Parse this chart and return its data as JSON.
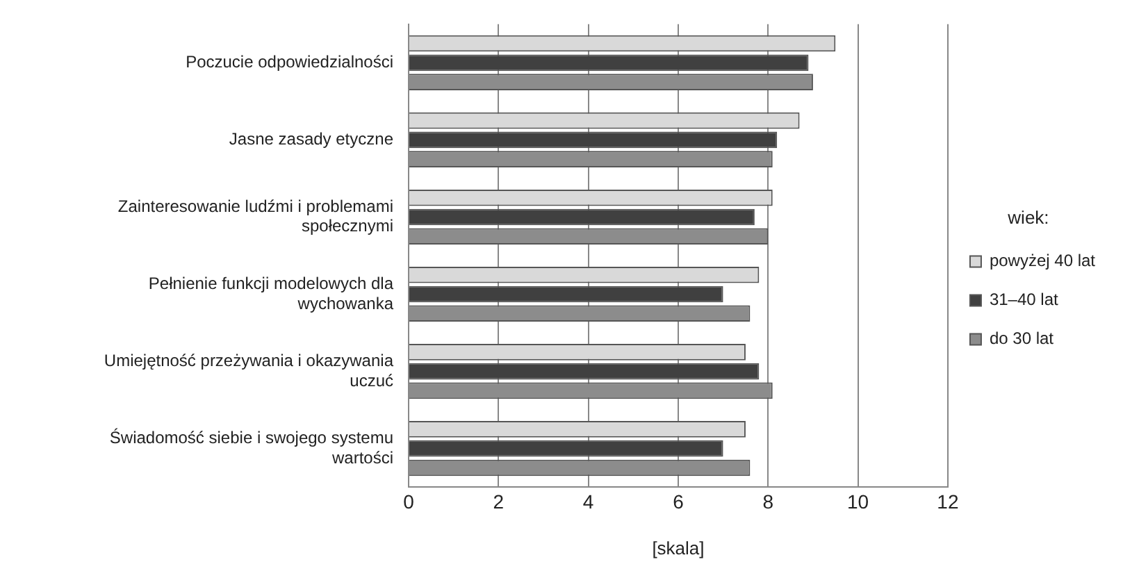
{
  "chart_data": {
    "type": "bar",
    "orientation": "horizontal",
    "xlabel": "[skala]",
    "legend_title": "wiek:",
    "legend": "right",
    "grid": "x",
    "categories": [
      "Poczucie odpowiedzialności",
      "Jasne zasady etyczne",
      "Zainteresowanie ludźmi i problemami społecznymi",
      "Pełnienie funkcji modelowych dla wychowanka",
      "Umiejętność przeżywania i okazywania uczuć",
      "Świadomość siebie i swojego systemu wartości"
    ],
    "xlim": [
      0,
      12
    ],
    "xticks": [
      0,
      2,
      4,
      6,
      8,
      10,
      12
    ],
    "series": [
      {
        "name": "powyżej 40 lat",
        "color": "#d9d9d9",
        "values": [
          9.5,
          8.7,
          8.1,
          7.8,
          7.5,
          7.5
        ]
      },
      {
        "name": "31–40 lat",
        "color": "#404040",
        "values": [
          8.9,
          8.2,
          7.7,
          7.0,
          7.8,
          7.0
        ]
      },
      {
        "name": "do 30 lat",
        "color": "#8c8c8c",
        "values": [
          9.0,
          8.1,
          8.0,
          7.6,
          8.1,
          7.6
        ]
      }
    ]
  }
}
